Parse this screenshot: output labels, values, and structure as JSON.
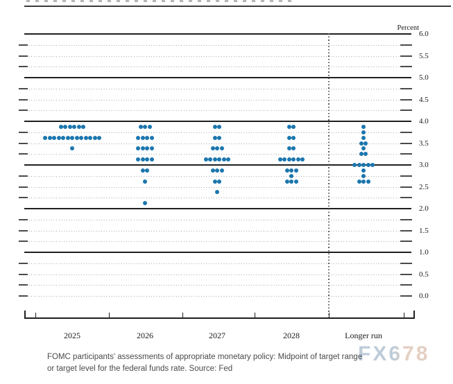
{
  "chart": {
    "percent_label": "Percent",
    "y_tick_labels": [
      "6.0",
      "5.5",
      "5.0",
      "4.5",
      "4.0",
      "3.5",
      "3.0",
      "2.5",
      "2.0",
      "1.5",
      "1.0",
      "0.5",
      "0.0"
    ]
  },
  "chart_data": {
    "type": "scatter",
    "subtype": "fomc-dot-plot",
    "title": "",
    "ylabel": "Percent",
    "ylim": [
      0.0,
      6.0
    ],
    "y_label_step": 0.5,
    "y_gridline_step": 0.25,
    "solid_gridlines": [
      1.0,
      2.0,
      3.0,
      4.0,
      5.0,
      6.0
    ],
    "grid": true,
    "legend_position": "none",
    "dot_color": "#1b76ae",
    "categories": [
      "2025",
      "2026",
      "2027",
      "2028",
      "Longer run"
    ],
    "separator_after_category": "2028",
    "series": [
      {
        "category": "2025",
        "dots": [
          {
            "rate": 3.875,
            "count": 6
          },
          {
            "rate": 3.625,
            "count": 13
          },
          {
            "rate": 3.375,
            "count": 1
          }
        ]
      },
      {
        "category": "2026",
        "dots": [
          {
            "rate": 3.875,
            "count": 3
          },
          {
            "rate": 3.625,
            "count": 4
          },
          {
            "rate": 3.375,
            "count": 4
          },
          {
            "rate": 3.125,
            "count": 4
          },
          {
            "rate": 2.875,
            "count": 2
          },
          {
            "rate": 2.625,
            "count": 1
          },
          {
            "rate": 2.125,
            "count": 1
          }
        ]
      },
      {
        "category": "2027",
        "dots": [
          {
            "rate": 3.875,
            "count": 2
          },
          {
            "rate": 3.625,
            "count": 2
          },
          {
            "rate": 3.375,
            "count": 3
          },
          {
            "rate": 3.125,
            "count": 6
          },
          {
            "rate": 2.875,
            "count": 3
          },
          {
            "rate": 2.625,
            "count": 2
          },
          {
            "rate": 2.375,
            "count": 1
          }
        ]
      },
      {
        "category": "2028",
        "dots": [
          {
            "rate": 3.875,
            "count": 2
          },
          {
            "rate": 3.625,
            "count": 2
          },
          {
            "rate": 3.375,
            "count": 2
          },
          {
            "rate": 3.125,
            "count": 6
          },
          {
            "rate": 2.875,
            "count": 3
          },
          {
            "rate": 2.75,
            "count": 1
          },
          {
            "rate": 2.625,
            "count": 3
          }
        ]
      },
      {
        "category": "Longer run",
        "dots": [
          {
            "rate": 3.875,
            "count": 1
          },
          {
            "rate": 3.75,
            "count": 1
          },
          {
            "rate": 3.625,
            "count": 1
          },
          {
            "rate": 3.5,
            "count": 2
          },
          {
            "rate": 3.375,
            "count": 1
          },
          {
            "rate": 3.25,
            "count": 2
          },
          {
            "rate": 3.0,
            "count": 5
          },
          {
            "rate": 2.875,
            "count": 1
          },
          {
            "rate": 2.75,
            "count": 1
          },
          {
            "rate": 2.625,
            "count": 3
          }
        ]
      }
    ]
  },
  "caption": {
    "line1": "FOMC participants' assessments of appropriate monetary policy: Midpoint of target range",
    "line2": "or target level for the federal funds rate. Source: Fed"
  },
  "watermark": {
    "text": "FX678"
  }
}
